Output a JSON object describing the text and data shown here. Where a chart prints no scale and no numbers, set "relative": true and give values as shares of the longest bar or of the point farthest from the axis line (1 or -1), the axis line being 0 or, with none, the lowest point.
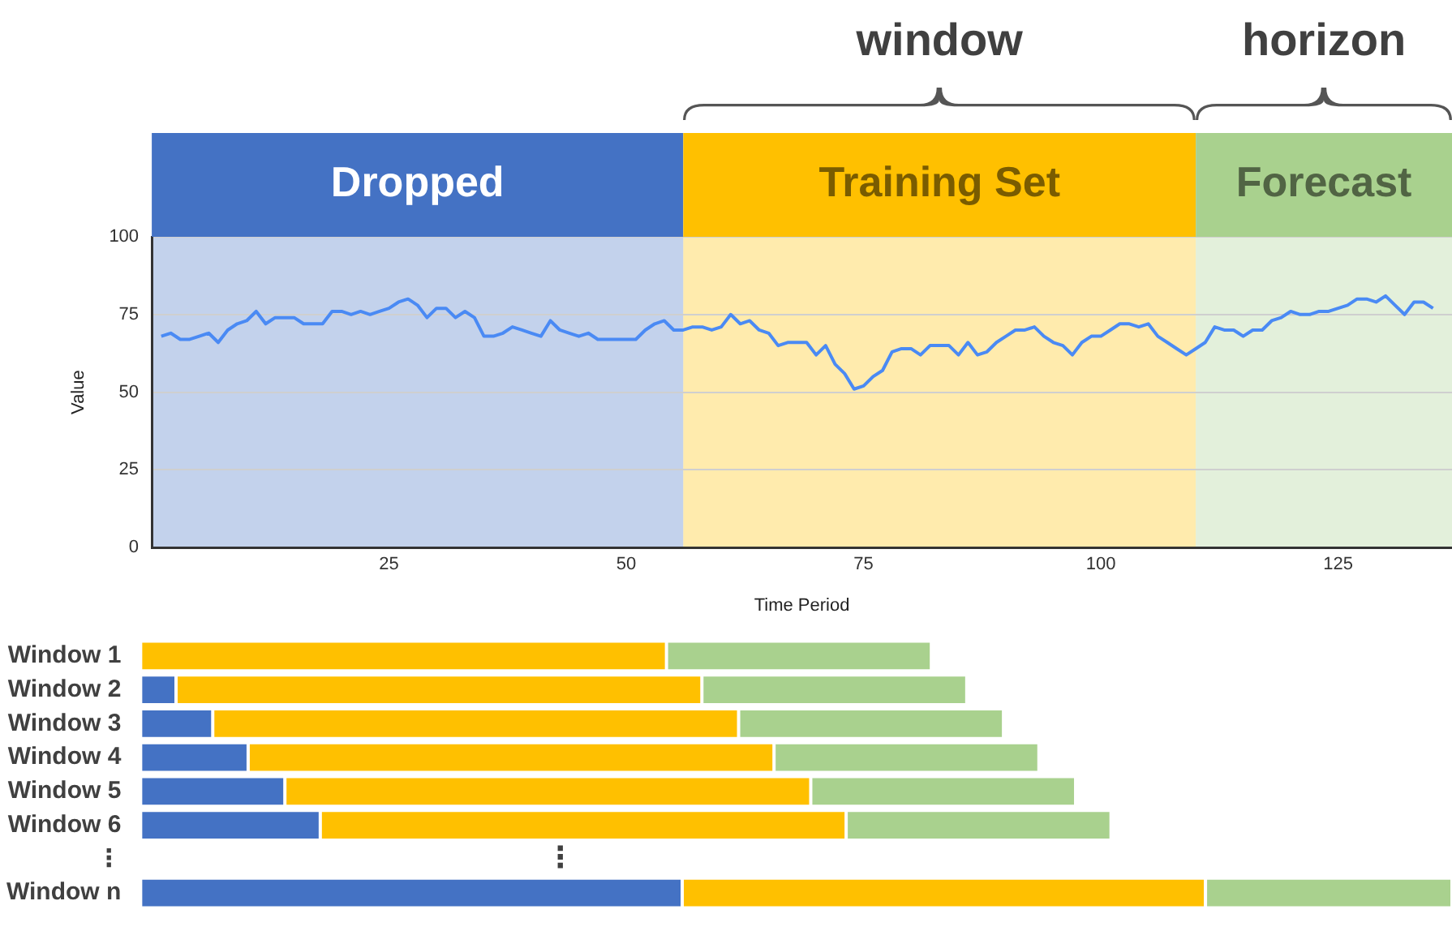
{
  "chart_data": [
    {
      "type": "line",
      "xlabel": "Time Period",
      "ylabel": "Value",
      "xlim": [
        0,
        137
      ],
      "xticks": [
        25,
        50,
        75,
        100,
        125
      ],
      "ylim": [
        0,
        100
      ],
      "yticks": [
        0,
        25,
        50,
        75,
        100
      ],
      "grid": "y",
      "legend": false,
      "marker": "none",
      "line_style": "solid",
      "series": [
        {
          "color": "#4a8af4",
          "x": [
            1,
            2,
            3,
            4,
            5,
            6,
            7,
            8,
            9,
            10,
            11,
            12,
            13,
            14,
            15,
            16,
            17,
            18,
            19,
            20,
            21,
            22,
            23,
            24,
            25,
            26,
            27,
            28,
            29,
            30,
            31,
            32,
            33,
            34,
            35,
            36,
            37,
            38,
            39,
            40,
            41,
            42,
            43,
            44,
            45,
            46,
            47,
            48,
            49,
            50,
            51,
            52,
            53,
            54,
            55,
            56,
            57,
            58,
            59,
            60,
            61,
            62,
            63,
            64,
            65,
            66,
            67,
            68,
            69,
            70,
            71,
            72,
            73,
            74,
            75,
            76,
            77,
            78,
            79,
            80,
            81,
            82,
            83,
            84,
            85,
            86,
            87,
            88,
            89,
            90,
            91,
            92,
            93,
            94,
            95,
            96,
            97,
            98,
            99,
            100,
            101,
            102,
            103,
            104,
            105,
            106,
            107,
            108,
            109,
            110,
            111,
            112,
            113,
            114,
            115,
            116,
            117,
            118,
            119,
            120,
            121,
            122,
            123,
            124,
            125,
            126,
            127,
            128,
            129,
            130,
            131,
            132,
            133,
            134,
            135
          ],
          "values": [
            68,
            69,
            67,
            67,
            68,
            69,
            66,
            70,
            72,
            73,
            76,
            72,
            74,
            74,
            74,
            72,
            72,
            72,
            76,
            76,
            75,
            76,
            75,
            76,
            77,
            79,
            80,
            78,
            74,
            77,
            77,
            74,
            76,
            74,
            68,
            68,
            69,
            71,
            70,
            69,
            68,
            73,
            70,
            69,
            68,
            69,
            67,
            67,
            67,
            67,
            67,
            70,
            72,
            73,
            70,
            70,
            71,
            71,
            70,
            71,
            75,
            72,
            73,
            70,
            69,
            65,
            66,
            66,
            66,
            62,
            65,
            59,
            56,
            51,
            52,
            55,
            57,
            63,
            64,
            64,
            62,
            65,
            65,
            65,
            62,
            66,
            62,
            63,
            66,
            68,
            70,
            70,
            71,
            68,
            66,
            65,
            62,
            66,
            68,
            68,
            70,
            72,
            72,
            71,
            72,
            68,
            66,
            64,
            62,
            64,
            66,
            71,
            70,
            70,
            68,
            70,
            70,
            73,
            74,
            76,
            75,
            75,
            76,
            76,
            77,
            78,
            80,
            80,
            79,
            81,
            78,
            75,
            79,
            79,
            77
          ]
        }
      ],
      "bands": [
        {
          "axis": "x",
          "from": 0,
          "to": 56,
          "label": "Dropped",
          "color": "#4472c4"
        },
        {
          "axis": "x",
          "from": 56,
          "to": 110,
          "label": "Training Set",
          "color": "#ffc000"
        },
        {
          "axis": "x",
          "from": 110,
          "to": 137,
          "label": "Forecast",
          "color": "#a9d18e"
        }
      ],
      "annotations": [
        "window",
        "horizon"
      ]
    },
    {
      "type": "bar",
      "orientation": "horizontal",
      "stacked": true,
      "relative": true,
      "legend": false,
      "categories": [
        "Window 1",
        "Window 2",
        "Window 3",
        "Window 4",
        "Window 5",
        "Window 6",
        "⋮",
        "Window n"
      ],
      "series": [
        {
          "color": "#4472c4",
          "values": [
            0,
            0.027,
            0.055,
            0.082,
            0.11,
            0.137,
            null,
            0.413
          ]
        },
        {
          "color": "#ffc000",
          "values": [
            0.401,
            0.401,
            0.401,
            0.401,
            0.401,
            0.401,
            null,
            0.399
          ]
        },
        {
          "color": "#a9d18e",
          "values": [
            0.202,
            0.202,
            0.202,
            0.202,
            0.202,
            0.202,
            null,
            0.188
          ]
        }
      ],
      "annotations": [
        {
          "text": "⋮",
          "x": 0.32,
          "y": "⋮"
        }
      ]
    }
  ]
}
